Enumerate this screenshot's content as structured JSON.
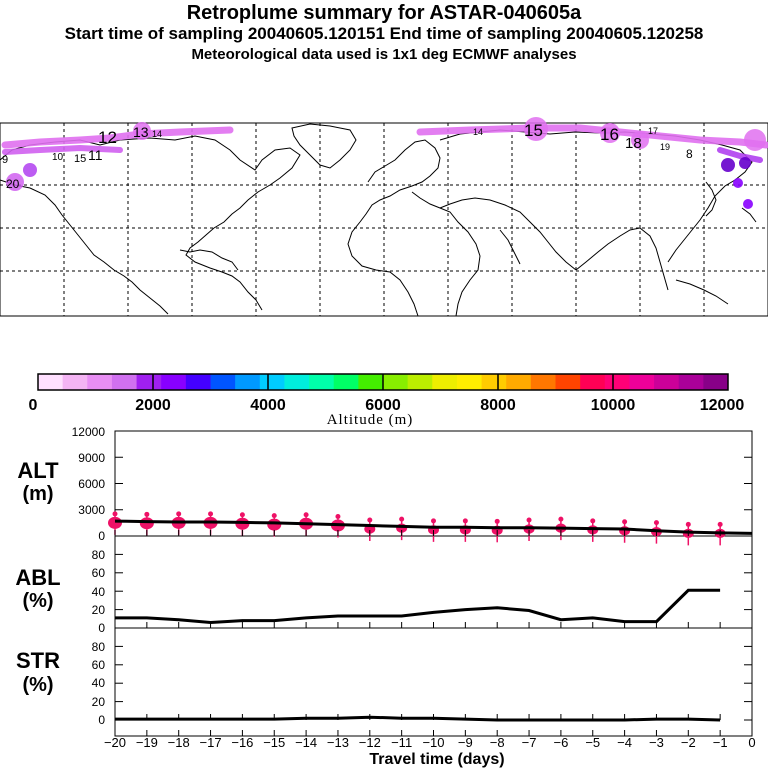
{
  "header": {
    "title": "Retroplume summary for ASTAR-040605a",
    "subtitle": "Start time of sampling 20040605.120151     End time of sampling 20040605.120258",
    "subtitle2": "Meteorological data used is 1x1 deg ECMWF analyses"
  },
  "colors": {
    "alt_markers": "#ee1166",
    "line": "#000000",
    "plume_light": "#e070f0",
    "plume_dark": "#6600cc",
    "bands": [
      "#ffe0ff",
      "#f4b4f4",
      "#e88ef4",
      "#d070f0",
      "#a020f0",
      "#8800ff",
      "#4400ff",
      "#0055ff",
      "#0099ff",
      "#00ccff",
      "#00eedd",
      "#00ffaa",
      "#00ff66",
      "#44ee00",
      "#88ee00",
      "#bbee00",
      "#eeee00",
      "#ffee00",
      "#ffcc00",
      "#ffaa00",
      "#ff7700",
      "#ff4400",
      "#ff0055",
      "#ff0077",
      "#ee0099",
      "#cc0099",
      "#aa0099",
      "#880088"
    ]
  },
  "map": {
    "plume_labels": [
      {
        "text": "12"
      },
      {
        "text": "13"
      },
      {
        "text": "14"
      },
      {
        "text": "15"
      },
      {
        "text": "15"
      },
      {
        "text": "11"
      },
      {
        "text": "10"
      },
      {
        "text": "9"
      },
      {
        "text": "20"
      },
      {
        "text": "16"
      },
      {
        "text": "18"
      },
      {
        "text": "17"
      },
      {
        "text": "14"
      },
      {
        "text": "19"
      },
      {
        "text": "8"
      }
    ]
  },
  "colorbar": {
    "ticks": [
      "0",
      "2000",
      "4000",
      "6000",
      "8000",
      "10000",
      "12000"
    ],
    "label": "Altitude (m)"
  },
  "chart_data": [
    {
      "type": "line",
      "panel": "ALT",
      "ylabel": "ALT",
      "yunit": "(m)",
      "ylim": [
        0,
        12000
      ],
      "yticks": [
        "0",
        "3000",
        "6000",
        "9000",
        "12000"
      ],
      "x": [
        -20,
        -19,
        -18,
        -17,
        -16,
        -15,
        -14,
        -13,
        -12,
        -11,
        -10,
        -9,
        -8,
        -7,
        -6,
        -5,
        -4,
        -3,
        -2,
        -1,
        0
      ],
      "values": [
        1700,
        1650,
        1600,
        1600,
        1550,
        1500,
        1400,
        1300,
        1200,
        1100,
        1000,
        1000,
        950,
        950,
        900,
        850,
        800,
        600,
        450,
        350,
        300
      ],
      "markers": [
        {
          "x": -20,
          "y": 1500
        },
        {
          "x": -19,
          "y": 1450
        },
        {
          "x": -18,
          "y": 1500
        },
        {
          "x": -17,
          "y": 1500
        },
        {
          "x": -16,
          "y": 1400
        },
        {
          "x": -15,
          "y": 1300
        },
        {
          "x": -14,
          "y": 1400
        },
        {
          "x": -13,
          "y": 1200
        },
        {
          "x": -12,
          "y": 800
        },
        {
          "x": -11,
          "y": 900
        },
        {
          "x": -10,
          "y": 700
        },
        {
          "x": -9,
          "y": 700
        },
        {
          "x": -8,
          "y": 650
        },
        {
          "x": -7,
          "y": 800
        },
        {
          "x": -6,
          "y": 900
        },
        {
          "x": -5,
          "y": 700
        },
        {
          "x": -4,
          "y": 600
        },
        {
          "x": -3,
          "y": 500
        },
        {
          "x": -2,
          "y": 300
        },
        {
          "x": -1,
          "y": 300
        }
      ]
    },
    {
      "type": "line",
      "panel": "ABL",
      "ylabel": "ABL",
      "yunit": "(%)",
      "ylim": [
        0,
        100
      ],
      "yticks": [
        "0",
        "20",
        "40",
        "60",
        "80"
      ],
      "x": [
        -20,
        -19,
        -18,
        -17,
        -16,
        -15,
        -14,
        -13,
        -12,
        -11,
        -10,
        -9,
        -8,
        -7,
        -6,
        -5,
        -4,
        -3,
        -2,
        -1
      ],
      "values": [
        11,
        11,
        9,
        6,
        8,
        8,
        11,
        13,
        13,
        13,
        17,
        20,
        22,
        19,
        9,
        11,
        7,
        7,
        41,
        41
      ]
    },
    {
      "type": "line",
      "panel": "STR",
      "ylabel": "STR",
      "yunit": "(%)",
      "ylim": [
        0,
        100
      ],
      "yticks": [
        "0",
        "20",
        "40",
        "60",
        "80"
      ],
      "x": [
        -20,
        -19,
        -18,
        -17,
        -16,
        -15,
        -14,
        -13,
        -12,
        -11,
        -10,
        -9,
        -8,
        -7,
        -6,
        -5,
        -4,
        -3,
        -2,
        -1
      ],
      "values": [
        1,
        1,
        1,
        1,
        1,
        1,
        2,
        2,
        3,
        2,
        2,
        1,
        0,
        0,
        0,
        0,
        0,
        1,
        1,
        0
      ]
    },
    {
      "type": "axis",
      "panel": "x-axis",
      "xticks": [
        "−20",
        "−19",
        "−18",
        "−17",
        "−16",
        "−15",
        "−14",
        "−13",
        "−12",
        "−11",
        "−10",
        "−9",
        "−8",
        "−7",
        "−6",
        "−5",
        "−4",
        "−3",
        "−2",
        "−1",
        "0"
      ],
      "xlabel": "Travel time (days)"
    }
  ]
}
